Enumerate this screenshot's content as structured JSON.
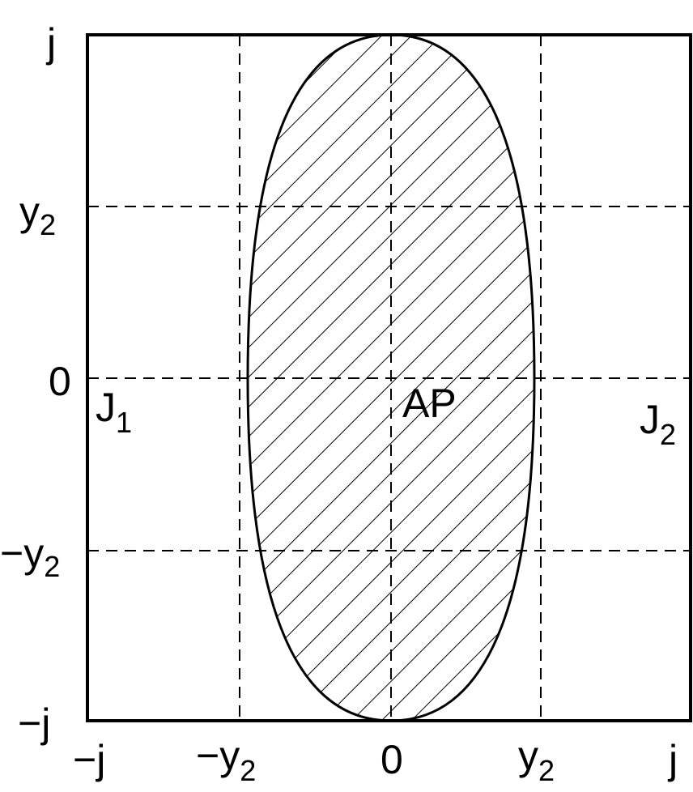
{
  "y_labels": [
    {
      "main": "j"
    },
    {
      "main": "y",
      "sub": "2"
    },
    {
      "main": "0"
    },
    {
      "main": "−y",
      "sub": "2"
    },
    {
      "main": "−j"
    }
  ],
  "x_labels": [
    {
      "main": "−j"
    },
    {
      "main": "−y",
      "sub": "2"
    },
    {
      "main": "0"
    },
    {
      "main": "y",
      "sub": "2"
    },
    {
      "main": "j"
    }
  ],
  "regions": [
    {
      "main": "J",
      "sub": "1"
    },
    {
      "main": "AP"
    },
    {
      "main": "J",
      "sub": "2"
    }
  ]
}
